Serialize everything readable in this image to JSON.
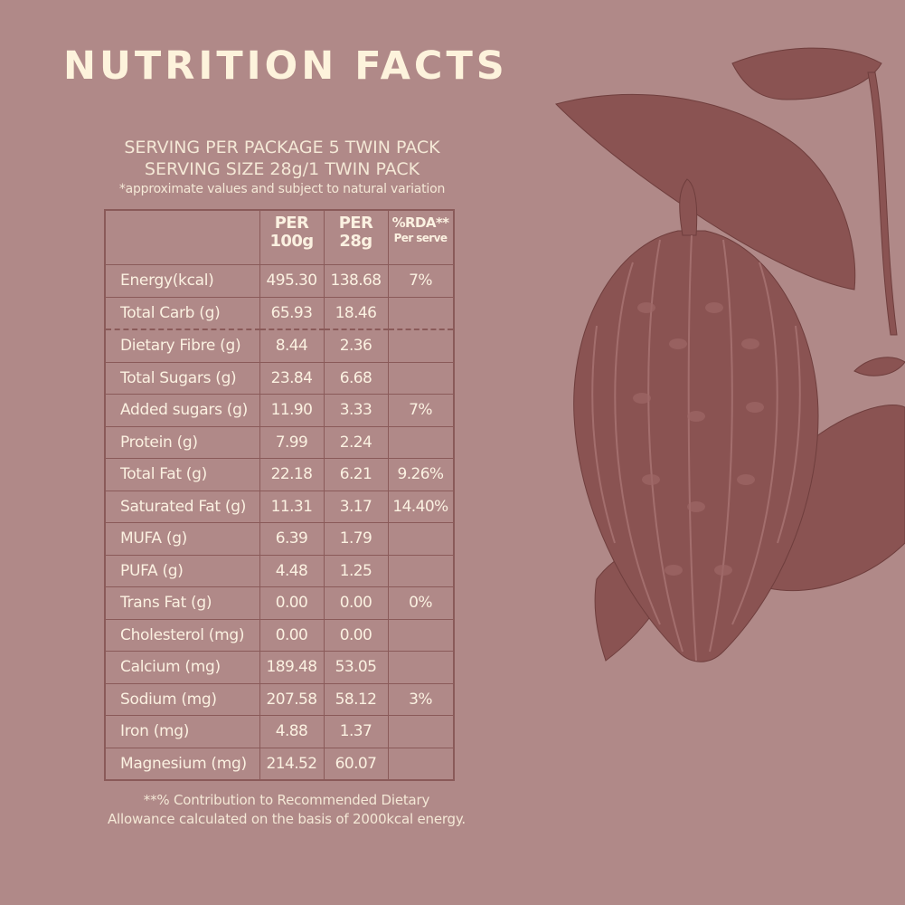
{
  "title": "NUTRITION FACTS",
  "serving": {
    "per_package": "SERVING PER PACKAGE 5 TWIN PACK",
    "size": "SERVING SIZE 28g/1 TWIN PACK",
    "note": "*approximate values and subject to natural variation"
  },
  "table": {
    "headers": [
      {
        "line1": "PER",
        "line2": "100g"
      },
      {
        "line1": "PER",
        "line2": "28g"
      },
      {
        "line1": "%RDA**",
        "line2": "Per serve"
      }
    ],
    "rows": [
      {
        "name": "Energy(kcal)",
        "per100": "495.30",
        "per28": "138.68",
        "rda": "7%"
      },
      {
        "name": "Total Carb (g)",
        "per100": "65.93",
        "per28": "18.46",
        "rda": ""
      },
      {
        "name": "Dietary Fibre (g)",
        "per100": "8.44",
        "per28": "2.36",
        "rda": ""
      },
      {
        "name": "Total Sugars (g)",
        "per100": "23.84",
        "per28": "6.68",
        "rda": ""
      },
      {
        "name": "Added sugars (g)",
        "per100": "11.90",
        "per28": "3.33",
        "rda": "7%"
      },
      {
        "name": "Protein (g)",
        "per100": "7.99",
        "per28": "2.24",
        "rda": ""
      },
      {
        "name": "Total Fat (g)",
        "per100": "22.18",
        "per28": "6.21",
        "rda": "9.26%"
      },
      {
        "name": "Saturated Fat (g)",
        "per100": "11.31",
        "per28": "3.17",
        "rda": "14.40%"
      },
      {
        "name": "MUFA (g)",
        "per100": "6.39",
        "per28": "1.79",
        "rda": ""
      },
      {
        "name": "PUFA (g)",
        "per100": "4.48",
        "per28": "1.25",
        "rda": ""
      },
      {
        "name": "Trans Fat (g)",
        "per100": "0.00",
        "per28": "0.00",
        "rda": "0%"
      },
      {
        "name": "Cholesterol (mg)",
        "per100": "0.00",
        "per28": "0.00",
        "rda": ""
      },
      {
        "name": "Calcium (mg)",
        "per100": "189.48",
        "per28": "53.05",
        "rda": ""
      },
      {
        "name": "Sodium (mg)",
        "per100": "207.58",
        "per28": "58.12",
        "rda": "3%"
      },
      {
        "name": "Iron (mg)",
        "per100": "4.88",
        "per28": "1.37",
        "rda": ""
      },
      {
        "name": "Magnesium (mg)",
        "per100": "214.52",
        "per28": "60.07",
        "rda": ""
      }
    ]
  },
  "footnote": {
    "line1": "**% Contribution to Recommended Dietary",
    "line2": "Allowance calculated on the basis of 2000kcal energy."
  },
  "colors": {
    "background": "#b08988",
    "illustration": "#8a5352",
    "text": "#fdf3dc",
    "table_border": "#8a5a59"
  },
  "illustration": {
    "icon": "cacao-pod-icon"
  }
}
